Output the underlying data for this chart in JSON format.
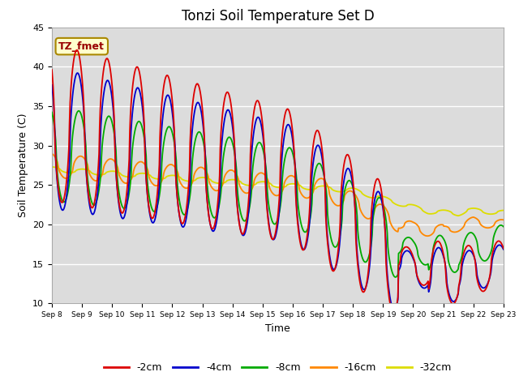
{
  "title": "Tonzi Soil Temperature Set D",
  "xlabel": "Time",
  "ylabel": "Soil Temperature (C)",
  "ylim": [
    10,
    45
  ],
  "xlim": [
    0,
    15
  ],
  "xtick_labels": [
    "Sep 8",
    "Sep 9",
    "Sep 10",
    "Sep 11",
    "Sep 12",
    "Sep 13",
    "Sep 14",
    "Sep 15",
    "Sep 16",
    "Sep 17",
    "Sep 18",
    "Sep 19",
    "Sep 20",
    "Sep 21",
    "Sep 22",
    "Sep 23"
  ],
  "label_box_text": "TZ_fmet",
  "label_box_bg": "#ffffcc",
  "label_box_edge": "#cc9900",
  "bg_color": "#dcdcdc",
  "line_colors": [
    "#dd0000",
    "#0000cc",
    "#00aa00",
    "#ff8800",
    "#dddd00"
  ],
  "line_labels": [
    "-2cm",
    "-4cm",
    "-8cm",
    "-16cm",
    "-32cm"
  ],
  "title_fontsize": 12,
  "axis_label_fontsize": 9,
  "tick_fontsize": 8
}
